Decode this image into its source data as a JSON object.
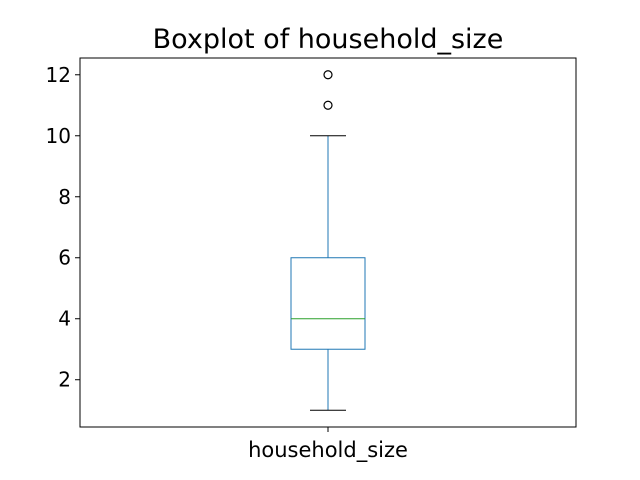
{
  "chart_data": {
    "type": "box",
    "title": "Boxplot of household_size",
    "xlabel": "",
    "ylabel": "",
    "categories": [
      "household_size"
    ],
    "series": [
      {
        "whisker_low": 1,
        "q1": 3,
        "median": 4,
        "q3": 6,
        "whisker_high": 10,
        "outliers": [
          11,
          12
        ]
      }
    ],
    "yticks": [
      2,
      4,
      6,
      8,
      10,
      12
    ],
    "ylim": [
      0.45,
      12.55
    ],
    "grid": false,
    "legend": "none",
    "colors": {
      "box": "#1f77b4",
      "whisker": "#1f77b4",
      "median": "#2ca02c",
      "cap": "#000000",
      "outlier": "#000000",
      "axes": "#000000"
    }
  }
}
